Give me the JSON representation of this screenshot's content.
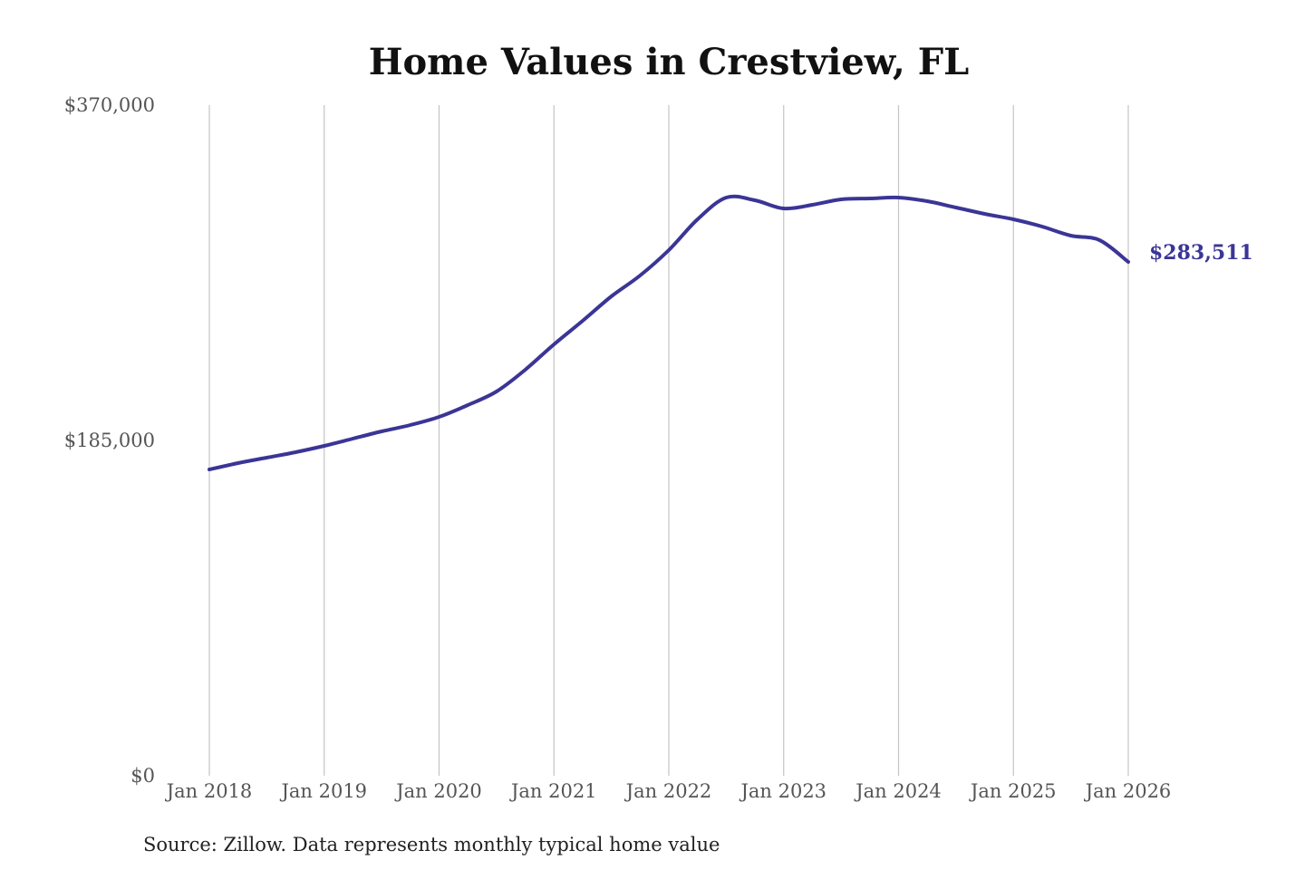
{
  "chart_data": {
    "type": "line",
    "title": "Home Values in Crestview, FL",
    "xlabel": "",
    "ylabel": "",
    "ylim": [
      0,
      370000
    ],
    "grid": "vertical",
    "y_ticks": [
      {
        "value": 0,
        "label": "$0"
      },
      {
        "value": 185000,
        "label": "$185,000"
      },
      {
        "value": 370000,
        "label": "$370,000"
      }
    ],
    "x_ticks": [
      {
        "value": "2018-01",
        "label": "Jan 2018"
      },
      {
        "value": "2019-01",
        "label": "Jan 2019"
      },
      {
        "value": "2020-01",
        "label": "Jan 2020"
      },
      {
        "value": "2021-01",
        "label": "Jan 2021"
      },
      {
        "value": "2022-01",
        "label": "Jan 2022"
      },
      {
        "value": "2023-01",
        "label": "Jan 2023"
      },
      {
        "value": "2024-01",
        "label": "Jan 2024"
      },
      {
        "value": "2025-01",
        "label": "Jan 2025"
      },
      {
        "value": "2026-01",
        "label": "Jan 2026"
      }
    ],
    "series": [
      {
        "color": "#3b3596",
        "x": [
          "2018-01",
          "2018-04",
          "2018-07",
          "2018-10",
          "2019-01",
          "2019-04",
          "2019-07",
          "2019-10",
          "2020-01",
          "2020-04",
          "2020-07",
          "2020-10",
          "2021-01",
          "2021-04",
          "2021-07",
          "2021-10",
          "2022-01",
          "2022-04",
          "2022-07",
          "2022-10",
          "2023-01",
          "2023-04",
          "2023-07",
          "2023-10",
          "2024-01",
          "2024-04",
          "2024-07",
          "2024-10",
          "2025-01",
          "2025-04",
          "2025-07",
          "2025-10",
          "2026-01"
        ],
        "values": [
          169000,
          172500,
          175500,
          178500,
          182000,
          186000,
          190000,
          193500,
          198000,
          204500,
          212000,
          224000,
          238000,
          251000,
          264500,
          276000,
          290000,
          307000,
          319000,
          317500,
          313000,
          315000,
          318000,
          318500,
          319000,
          317000,
          313500,
          310000,
          307000,
          303000,
          298000,
          295500,
          283511
        ]
      }
    ],
    "end_label": "$283,511"
  },
  "source": "Source: Zillow. Data represents monthly typical home value"
}
